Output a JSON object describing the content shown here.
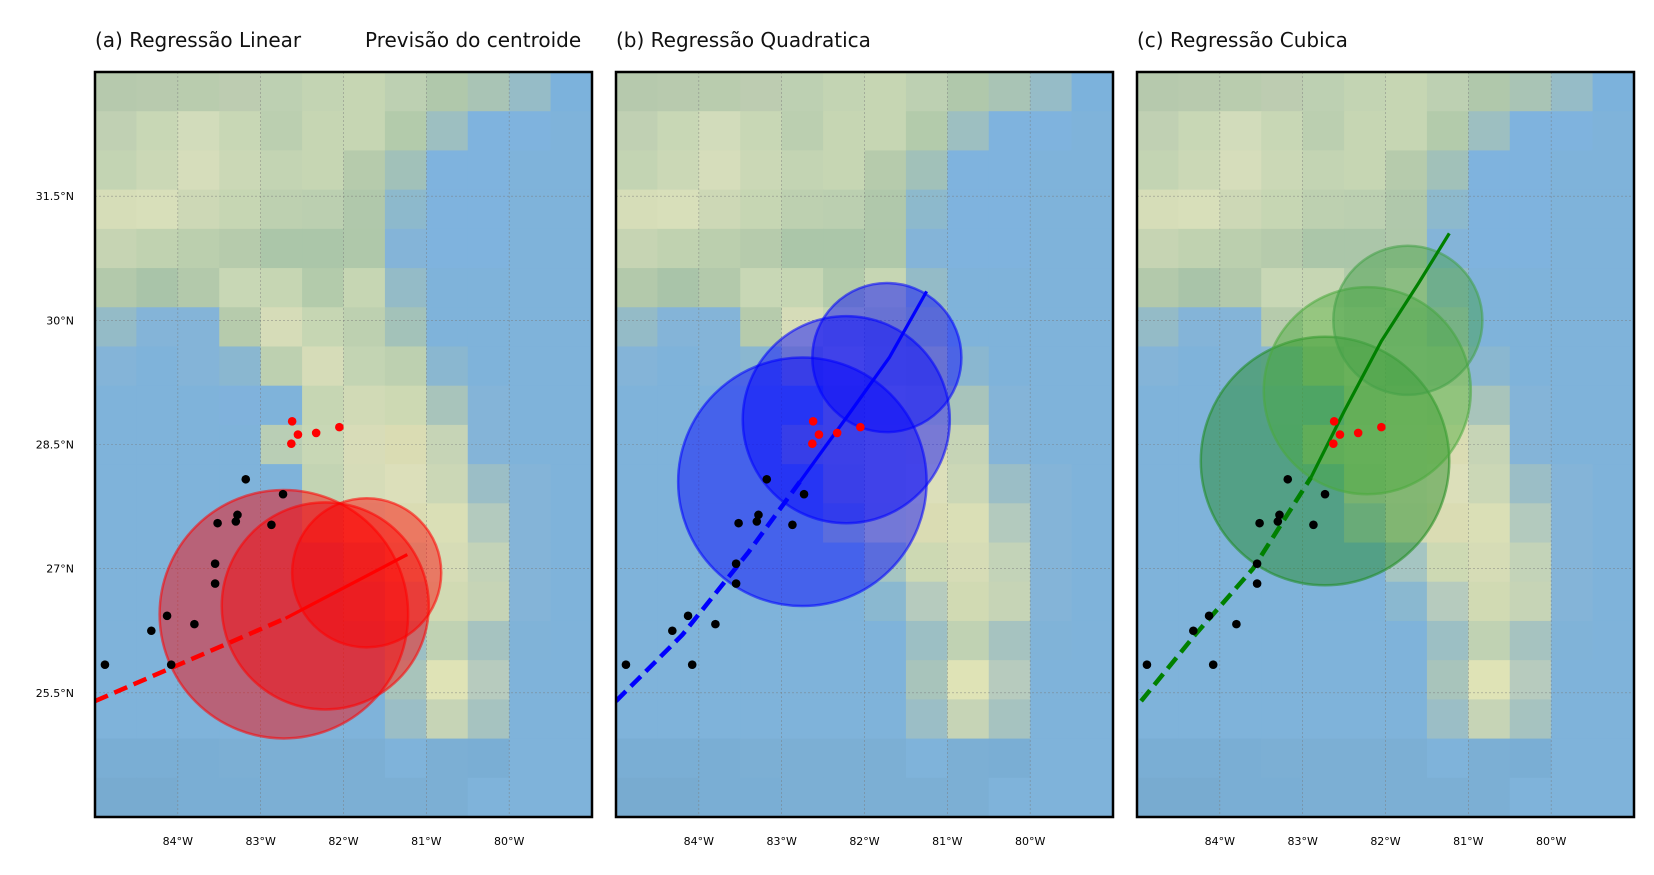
{
  "figure": {
    "suptitle": "Previsão do centroide"
  },
  "axes": {
    "lon_ticks": [
      -84,
      -83,
      -82,
      -81,
      -80
    ],
    "lon_labels": [
      "84°W",
      "83°W",
      "82°W",
      "81°W",
      "80°W"
    ],
    "lat_ticks": [
      25.5,
      27,
      28.5,
      30,
      31.5
    ],
    "lat_labels": [
      "25.5°N",
      "27°N",
      "28.5°N",
      "30°N",
      "31.5°N"
    ]
  },
  "chart_data": {
    "type": "scatter",
    "xlim": [
      -85.0,
      -79.0
    ],
    "ylim": [
      24.0,
      33.0
    ],
    "grid": true,
    "background_field": [
      [
        "#b6c9ad",
        "#b8caae",
        "#b9ccae",
        "#bdccb1",
        "#bdd0b2",
        "#c3d4b3",
        "#c6d6b3",
        "#bdd0b2",
        "#b0c8ab",
        "#a9c4b5",
        "#96bcc7",
        "#7cb2dc"
      ],
      [
        "#c0d0b3",
        "#c8d7b5",
        "#d2dcbb",
        "#c8d7b5",
        "#bbcfb0",
        "#c6d6b3",
        "#c6d6b3",
        "#b3cbab",
        "#9dbfc1",
        "#7fb3de",
        "#7fb3de",
        "#7fb3da"
      ],
      [
        "#c3d4b3",
        "#cbd8b6",
        "#d6ddbb",
        "#cbd8b6",
        "#c3d4b3",
        "#c6d6b3",
        "#b6cbac",
        "#a1c1b9",
        "#7fb3de",
        "#7fb3de",
        "#7fb3da",
        "#7fb3da"
      ],
      [
        "#d6ddb8",
        "#d8dfba",
        "#cdd8b6",
        "#c6d6b3",
        "#bdd0b0",
        "#bbcfb0",
        "#b0c8ab",
        "#8db9cc",
        "#7fb3de",
        "#7fb3de",
        "#7fb3da",
        "#7fb3da"
      ],
      [
        "#c6d4b3",
        "#c0d2b0",
        "#bbcfae",
        "#b6cbac",
        "#abc6a9",
        "#abc6a9",
        "#afc8aa",
        "#84b4d8",
        "#7fb3de",
        "#7fb3de",
        "#7fb3da",
        "#7fb3da"
      ],
      [
        "#b3c9ab",
        "#a9c4a9",
        "#b3c9ab",
        "#c8d7b5",
        "#c6d6b3",
        "#b3cbab",
        "#c6d6b3",
        "#94bbc7",
        "#7fb3da",
        "#7fb3da",
        "#7fb3da",
        "#7fb3da"
      ],
      [
        "#94bbc7",
        "#84b4d8",
        "#84b4d8",
        "#b6cbac",
        "#d6dcb8",
        "#c6d6b3",
        "#bdd0b0",
        "#a3c2b9",
        "#7fb3da",
        "#7fb3da",
        "#7fb3da",
        "#7fb3da"
      ],
      [
        "#84b4d8",
        "#7fb3da",
        "#84b4d8",
        "#8ab7d0",
        "#bdd0b0",
        "#d6dcb8",
        "#c3d4b3",
        "#bdd0b0",
        "#8ab7d0",
        "#7fb3da",
        "#7fb3da",
        "#7fb3da"
      ],
      [
        "#7fb3da",
        "#7fb3da",
        "#7fb3da",
        "#80b2dc",
        "#7fb3da",
        "#c6d6b3",
        "#d1dab6",
        "#cdd9b3",
        "#a8c4bb",
        "#84b4d8",
        "#7fb3da",
        "#7fb3da"
      ],
      [
        "#7fb3da",
        "#7fb3da",
        "#7fb3da",
        "#7fb3da",
        "#b9ceb5",
        "#c8d7b5",
        "#d8dcb8",
        "#dadcb3",
        "#c6d4b6",
        "#84b4d8",
        "#7fb3da",
        "#7fb3da"
      ],
      [
        "#7fb3da",
        "#7fb3da",
        "#7fb3da",
        "#7fb3da",
        "#7fb3da",
        "#c3d4b3",
        "#d6dcb8",
        "#dcdfba",
        "#cbd7b6",
        "#9bbec6",
        "#84b4d8",
        "#7fb3da"
      ],
      [
        "#7fb3da",
        "#7fb3da",
        "#7fb3da",
        "#7fb3da",
        "#7fb3da",
        "#a7c6c1",
        "#d1dab6",
        "#dadcb3",
        "#dadfb6",
        "#b3cabe",
        "#84b4d8",
        "#7fb3da"
      ],
      [
        "#7fb3da",
        "#7fb3da",
        "#7fb3da",
        "#7fb3da",
        "#7fb3da",
        "#7fb3da",
        "#a5c5c2",
        "#cdd9b3",
        "#d6dcb6",
        "#c3d3b8",
        "#84b4d8",
        "#7fb3da"
      ],
      [
        "#7fb3da",
        "#7fb3da",
        "#7fb3da",
        "#7fb3da",
        "#7fb3da",
        "#7fb3da",
        "#8ab8d0",
        "#b6cbbe",
        "#d1dab3",
        "#c6d4b6",
        "#84b4d8",
        "#7fb3da"
      ],
      [
        "#7fb3da",
        "#7fb3da",
        "#7fb3da",
        "#7fb3da",
        "#7fb3da",
        "#7fb3da",
        "#7fb3da",
        "#9cbfc4",
        "#c0d2b3",
        "#a6c3c0",
        "#80b3d8",
        "#7fb3da"
      ],
      [
        "#7fb3da",
        "#7fb3da",
        "#7fb3da",
        "#7fb3da",
        "#7fb3da",
        "#7fb3da",
        "#7fb3da",
        "#a8c4bb",
        "#dfe3b6",
        "#b7cbbe",
        "#7fb3da",
        "#7fb3da"
      ],
      [
        "#7fb3da",
        "#7fb3da",
        "#7fb3da",
        "#7fb3da",
        "#7fb3da",
        "#7fb3da",
        "#7fb3da",
        "#9bbec6",
        "#c6d4b6",
        "#a6c3c0",
        "#7fb3da",
        "#7fb3da"
      ],
      [
        "#7aaed4",
        "#7aaed4",
        "#7aaed4",
        "#7cafd4",
        "#7cafd4",
        "#7cafd4",
        "#7cafd4",
        "#7fb3da",
        "#7cafd4",
        "#7aaed4",
        "#7fb3da",
        "#7fb3da"
      ],
      [
        "#78abd0",
        "#78abd0",
        "#7aaed4",
        "#7aaed4",
        "#7cafd4",
        "#7cafd4",
        "#7cafd4",
        "#7cafd4",
        "#7cafd4",
        "#7fb3da",
        "#7fb3da",
        "#7fb3da"
      ]
    ],
    "observed_points": [
      [
        -84.88,
        25.84
      ],
      [
        -84.08,
        25.84
      ],
      [
        -84.32,
        26.25
      ],
      [
        -84.13,
        26.43
      ],
      [
        -83.8,
        26.33
      ],
      [
        -83.55,
        26.82
      ],
      [
        -83.55,
        27.06
      ],
      [
        -83.52,
        27.55
      ],
      [
        -83.3,
        27.57
      ],
      [
        -83.28,
        27.65
      ],
      [
        -82.87,
        27.53
      ],
      [
        -83.18,
        28.08
      ],
      [
        -82.73,
        27.9
      ]
    ],
    "forecast_points": [
      [
        -82.62,
        28.78
      ],
      [
        -82.55,
        28.62
      ],
      [
        -82.33,
        28.64
      ],
      [
        -82.05,
        28.71
      ],
      [
        -82.63,
        28.51
      ]
    ],
    "panels": [
      {
        "title": "(a) Regressão Linear",
        "color": "#ff0000",
        "fill_colors": [
          "#ff0000",
          "#ff0000",
          "#ff0000"
        ],
        "dashed_line": [
          [
            -85.0,
            25.4
          ],
          [
            -82.7,
            26.4
          ]
        ],
        "solid_line": [
          [
            -82.7,
            26.4
          ],
          [
            -81.23,
            27.17
          ]
        ],
        "circles": [
          {
            "center": [
              -82.72,
              26.45
            ],
            "radius_deg": 1.5
          },
          {
            "center": [
              -82.22,
              26.55
            ],
            "radius_deg": 1.25
          },
          {
            "center": [
              -81.72,
              26.95
            ],
            "radius_deg": 0.9
          }
        ]
      },
      {
        "title": "(b) Regressão Quadratica",
        "color": "#0000ff",
        "fill_colors": [
          "#0000ff",
          "#0000ff",
          "#0000ff"
        ],
        "dashed_line": [
          [
            -85.0,
            25.4
          ],
          [
            -84.2,
            26.2
          ],
          [
            -83.4,
            27.2
          ],
          [
            -82.78,
            28.05
          ]
        ],
        "solid_line": [
          [
            -82.78,
            28.05
          ],
          [
            -82.2,
            28.85
          ],
          [
            -81.7,
            29.55
          ],
          [
            -81.25,
            30.35
          ]
        ],
        "circles": [
          {
            "center": [
              -82.75,
              28.05
            ],
            "radius_deg": 1.5
          },
          {
            "center": [
              -82.22,
              28.8
            ],
            "radius_deg": 1.25
          },
          {
            "center": [
              -81.73,
              29.55
            ],
            "radius_deg": 0.9
          }
        ]
      },
      {
        "title": "(c) Regressão Cubica",
        "color": "#008000",
        "fill_colors": [
          "#1e8a1e",
          "#4aaa3c",
          "#43a047"
        ],
        "dashed_line": [
          [
            -84.95,
            25.4
          ],
          [
            -84.3,
            26.2
          ],
          [
            -83.6,
            27.0
          ],
          [
            -82.9,
            28.1
          ]
        ],
        "solid_line": [
          [
            -82.9,
            28.1
          ],
          [
            -82.5,
            28.9
          ],
          [
            -82.05,
            29.75
          ],
          [
            -81.6,
            30.45
          ],
          [
            -81.23,
            31.05
          ]
        ],
        "circles": [
          {
            "center": [
              -82.73,
              28.3
            ],
            "radius_deg": 1.5
          },
          {
            "center": [
              -82.22,
              29.15
            ],
            "radius_deg": 1.25
          },
          {
            "center": [
              -81.73,
              30.0
            ],
            "radius_deg": 0.9
          }
        ]
      }
    ]
  }
}
